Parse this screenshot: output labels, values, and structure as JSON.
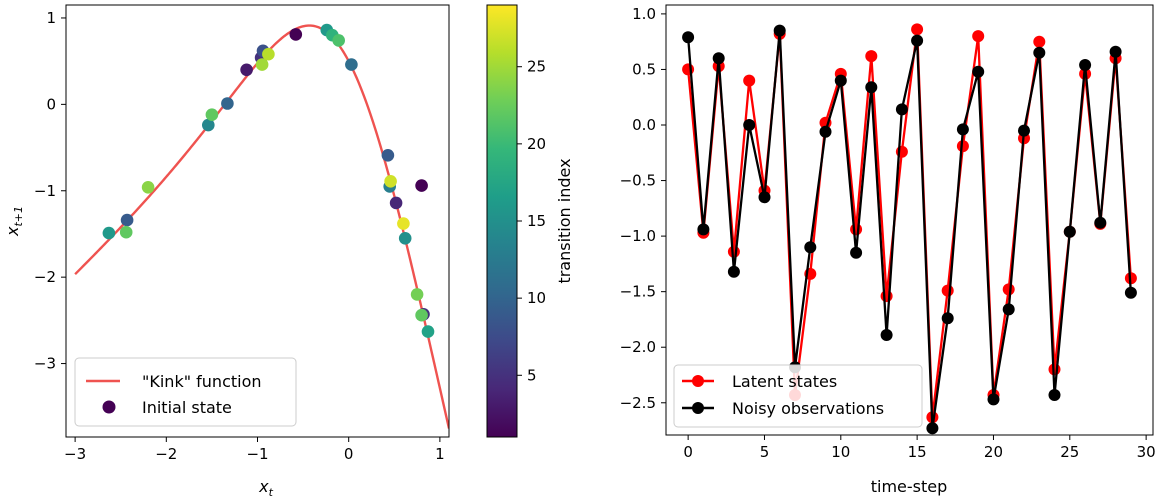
{
  "chart_data": [
    {
      "type": "scatter",
      "title": "",
      "xlabel_base": "x",
      "xlabel_sub": "t",
      "ylabel_base": "x",
      "ylabel_sub": "t+1",
      "xlim": [
        -3.1,
        1.1
      ],
      "ylim": [
        -3.85,
        1.15
      ],
      "xticks": [
        -3,
        -2,
        -1,
        0,
        1
      ],
      "yticks": [
        -3,
        -2,
        -1,
        0,
        1
      ],
      "grid": false,
      "curve": {
        "name": "\"Kink\" function",
        "color": "#ef5350",
        "x_range": [
          -3,
          1.1
        ],
        "formula": "0.8 + (x + 0.2)*(1 - 5/(1 + exp(-2x)))"
      },
      "scatter_series": {
        "name": "Initial state",
        "legend_color": "#440154",
        "points": [
          {
            "x": -0.58,
            "y": 0.81,
            "index": 1
          },
          {
            "x": 0.8,
            "y": -0.94,
            "index": 1
          },
          {
            "x": -1.12,
            "y": 0.4,
            "index": 3
          },
          {
            "x": 0.52,
            "y": -1.14,
            "index": 4
          },
          {
            "x": -0.96,
            "y": 0.54,
            "index": 5
          },
          {
            "x": 0.82,
            "y": -2.43,
            "index": 5
          },
          {
            "x": -0.94,
            "y": 0.62,
            "index": 8
          },
          {
            "x": -2.43,
            "y": -1.34,
            "index": 9
          },
          {
            "x": 0.43,
            "y": -0.59,
            "index": 9
          },
          {
            "x": -1.33,
            "y": 0.01,
            "index": 10
          },
          {
            "x": 0.03,
            "y": 0.46,
            "index": 11
          },
          {
            "x": 0.45,
            "y": -0.95,
            "index": 13
          },
          {
            "x": -1.54,
            "y": -0.24,
            "index": 14
          },
          {
            "x": 0.62,
            "y": -1.55,
            "index": 15
          },
          {
            "x": -2.63,
            "y": -1.49,
            "index": 16
          },
          {
            "x": -0.24,
            "y": 0.86,
            "index": 16
          },
          {
            "x": 0.87,
            "y": -2.63,
            "index": 17
          },
          {
            "x": -0.18,
            "y": 0.8,
            "index": 19
          },
          {
            "x": -0.11,
            "y": 0.74,
            "index": 21
          },
          {
            "x": -1.5,
            "y": -0.12,
            "index": 22
          },
          {
            "x": -2.44,
            "y": -1.48,
            "index": 22
          },
          {
            "x": 0.8,
            "y": -2.44,
            "index": 22
          },
          {
            "x": 0.75,
            "y": -2.2,
            "index": 23
          },
          {
            "x": -2.2,
            "y": -0.96,
            "index": 24
          },
          {
            "x": -0.95,
            "y": 0.46,
            "index": 25
          },
          {
            "x": -0.88,
            "y": 0.58,
            "index": 26
          },
          {
            "x": 0.46,
            "y": -0.89,
            "index": 27
          },
          {
            "x": 0.6,
            "y": -1.38,
            "index": 28
          }
        ]
      },
      "colorbar": {
        "label": "transition index",
        "colormap": "viridis",
        "range": [
          1,
          29
        ],
        "ticks": [
          5,
          10,
          15,
          20,
          25
        ]
      },
      "legend": {
        "location": "lower-left",
        "entries": [
          "\"Kink\" function",
          "Initial state"
        ]
      }
    },
    {
      "type": "line",
      "title": "",
      "xlabel": "time-step",
      "ylabel": "",
      "xlim": [
        -1.45,
        30.45
      ],
      "ylim": [
        -2.79,
        1.08
      ],
      "xticks": [
        0,
        5,
        10,
        15,
        20,
        25,
        30
      ],
      "yticks": [
        -2.5,
        -2.0,
        -1.5,
        -1.0,
        -0.5,
        0.0,
        0.5,
        1.0
      ],
      "grid": false,
      "x": [
        0,
        1,
        2,
        3,
        4,
        5,
        6,
        7,
        8,
        9,
        10,
        11,
        12,
        13,
        14,
        15,
        16,
        17,
        18,
        19,
        20,
        21,
        22,
        23,
        24,
        25,
        26,
        27,
        28,
        29
      ],
      "series": [
        {
          "name": "Latent states",
          "color": "#ff0000",
          "values": [
            0.5,
            -0.97,
            0.53,
            -1.14,
            0.4,
            -0.59,
            0.82,
            -2.43,
            -1.34,
            0.02,
            0.46,
            -0.94,
            0.62,
            -1.54,
            -0.24,
            0.86,
            -2.63,
            -1.49,
            -0.19,
            0.8,
            -2.43,
            -1.48,
            -0.12,
            0.75,
            -2.2,
            -0.96,
            0.46,
            -0.89,
            0.6,
            -1.38
          ]
        },
        {
          "name": "Noisy observations",
          "color": "#000000",
          "values": [
            0.79,
            -0.94,
            0.6,
            -1.32,
            0.0,
            -0.65,
            0.85,
            -2.18,
            -1.1,
            -0.06,
            0.4,
            -1.15,
            0.34,
            -1.89,
            0.14,
            0.76,
            -2.73,
            -1.74,
            -0.04,
            0.48,
            -2.47,
            -1.66,
            -0.05,
            0.65,
            -2.43,
            -0.96,
            0.54,
            -0.88,
            0.66,
            -1.51
          ]
        }
      ],
      "legend": {
        "location": "lower-left",
        "entries": [
          "Latent states",
          "Noisy observations"
        ]
      }
    }
  ]
}
